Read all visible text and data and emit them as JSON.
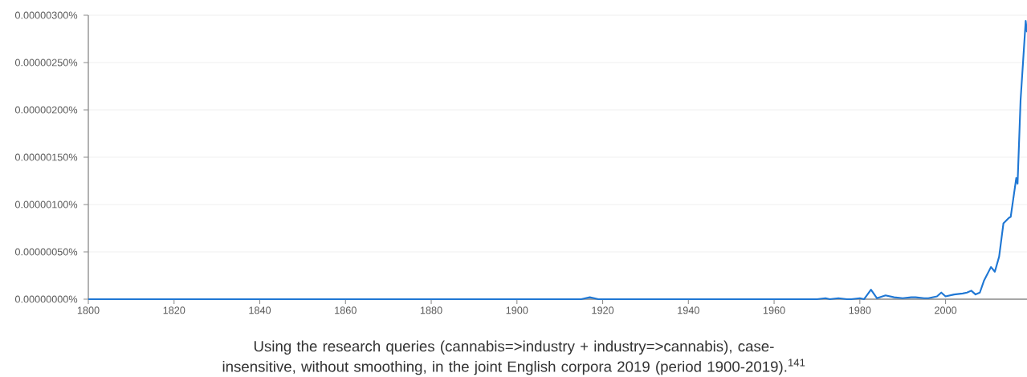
{
  "chart_data": {
    "type": "line",
    "x": [
      1800,
      1915,
      1917,
      1919,
      1970,
      1972,
      1973,
      1975,
      1977,
      1978,
      1980,
      1981,
      1982.6,
      1984,
      1986,
      1988,
      1990,
      1992,
      1993,
      1995,
      1996,
      1998,
      1999,
      2000,
      2002,
      2004,
      2005,
      2006,
      2007,
      2008,
      2009,
      2010.6,
      2011.5,
      2012.5,
      2013.5,
      2014.8,
      2015.2,
      2016.5,
      2016.8,
      2017.5,
      2018.7,
      2019
    ],
    "series": [
      {
        "color": "#1f77d4",
        "values": [
          0,
          0,
          2e-08,
          0,
          0,
          1e-08,
          0,
          1e-08,
          0,
          0,
          1e-08,
          0,
          1e-07,
          1e-08,
          4e-08,
          2e-08,
          1e-08,
          2e-08,
          2e-08,
          1e-08,
          1e-08,
          3e-08,
          7e-08,
          3e-08,
          5e-08,
          6e-08,
          7e-08,
          9e-08,
          5e-08,
          7e-08,
          2e-07,
          3.4e-07,
          2.9e-07,
          4.5e-07,
          8e-07,
          8.6e-07,
          8.7e-07,
          1.28e-06,
          1.22e-06,
          2.1e-06,
          2.94e-06,
          2.82e-06
        ]
      }
    ],
    "xlim": [
      1800,
      2019
    ],
    "xticks": [
      1800,
      1820,
      1840,
      1860,
      1880,
      1900,
      1920,
      1940,
      1960,
      1980,
      2000
    ],
    "ylim": [
      0,
      3e-06
    ],
    "yticks": [
      {
        "value": 0,
        "label": "0.00000000%"
      },
      {
        "value": 5e-07,
        "label": "0.00000050%"
      },
      {
        "value": 1e-06,
        "label": "0.00000100%"
      },
      {
        "value": 1.5e-06,
        "label": "0.00000150%"
      },
      {
        "value": 2e-06,
        "label": "0.00000200%"
      },
      {
        "value": 2.5e-06,
        "label": "0.00000250%"
      },
      {
        "value": 3e-06,
        "label": "0.00000300%"
      }
    ],
    "grid": "y",
    "marker": "none",
    "line_style": "solid",
    "annotations": [
      "Using the research queries (cannabis=>industry + industry=>cannabis), case-insensitive, without smoothing, in the joint English corpora 2019 (period 1900-2019).$^{141}$"
    ]
  }
}
